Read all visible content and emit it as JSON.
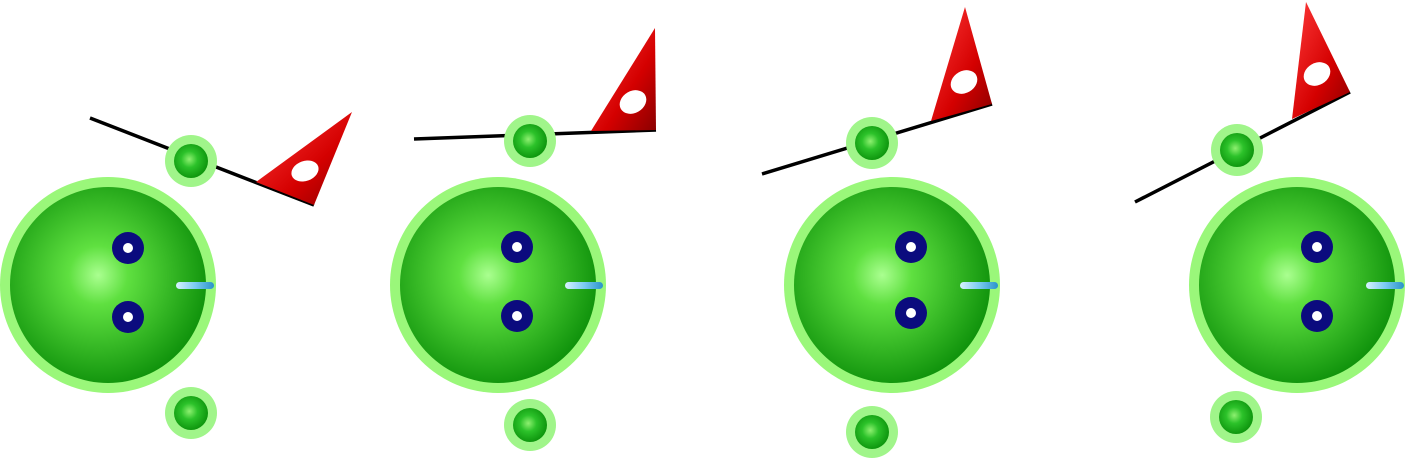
{
  "diagram": {
    "title": "",
    "panel_count": 4,
    "panels": [
      {
        "id": "panel-1",
        "lever_angle_deg": 21
      },
      {
        "id": "panel-2",
        "lever_angle_deg": -2
      },
      {
        "id": "panel-3",
        "lever_angle_deg": -17
      },
      {
        "id": "panel-4",
        "lever_angle_deg": -28
      }
    ],
    "colors": {
      "background": "#ffffff",
      "gear_outer_ring": "#9af77a",
      "gear_body_light": "#7cf05d",
      "gear_body_dark": "#0a8d08",
      "small_wheel_ring": "#a0f58a",
      "small_wheel_body": "#18b418",
      "bolt_dark": "#0b0b7e",
      "bolt_center": "#ffffff",
      "pointer_light": "#9fd8f5",
      "pointer_dark": "#2a93c9",
      "lever_line": "#000000",
      "flag_light": "#ff2020",
      "flag_dark": "#a00000",
      "flag_hole": "#ffffff"
    }
  }
}
